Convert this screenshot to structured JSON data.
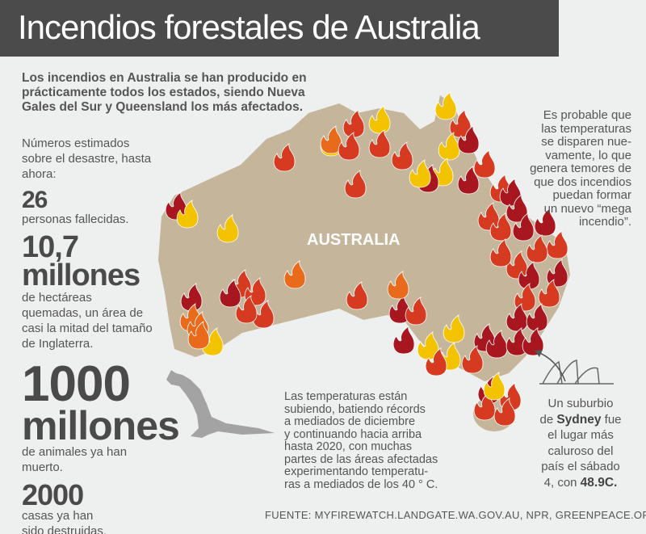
{
  "title": "Incendios forestales de Australia",
  "intro": [
    "Los incendios en Australia se han producido en",
    "prácticamente todos los estados, siendo Nueva",
    "Gales del Sur y Queensland los más afectados."
  ],
  "stats_intro": [
    "Números estimados",
    "sobre el desastre, hasta",
    "ahora:"
  ],
  "stats": [
    {
      "figure": [
        "26"
      ],
      "text": [
        "personas  fallecidas."
      ]
    },
    {
      "figure": [
        "10,7",
        "millones"
      ],
      "text": [
        "de hectáreas",
        "quemadas, un área de",
        "casi la mitad del tamaño",
        "de Inglaterra."
      ]
    },
    {
      "figure": [
        "1000",
        "millones"
      ],
      "text": [
        "de animales ya han",
        "muerto."
      ]
    },
    {
      "figure": [
        "2000"
      ],
      "text": [
        "casas ya han",
        "sido destruidas."
      ]
    }
  ],
  "map_label": "AUSTRALIA",
  "note_right": [
    "Es probable que",
    "las temperaturas",
    "se disparen nue-",
    "vamente, lo que",
    "genera temores de",
    "que dos incendios",
    "puedan formar",
    "un nuevo “mega",
    "incendio”."
  ],
  "note_bottom": [
    "Las temperaturas están",
    "subiendo, batiendo récords",
    "a mediados de diciembre",
    "y continuando hacia arriba",
    "hasta 2020, con muchas",
    "partes de las áreas afectadas",
    "experimentando temperatu-",
    "ras a mediados de los 40 ° C."
  ],
  "sydney_note": {
    "lines": [
      "Un suburbio",
      "de ",
      "Sydney",
      " fue",
      "el lugar más",
      "caluroso del",
      "país el sábado",
      "4, con ",
      "48.9C."
    ]
  },
  "source": "FUENTE: MYFIREWATCH.LANDGATE.WA.GOV.AU, NPR, GREENPEACE.ORG.UK"
}
